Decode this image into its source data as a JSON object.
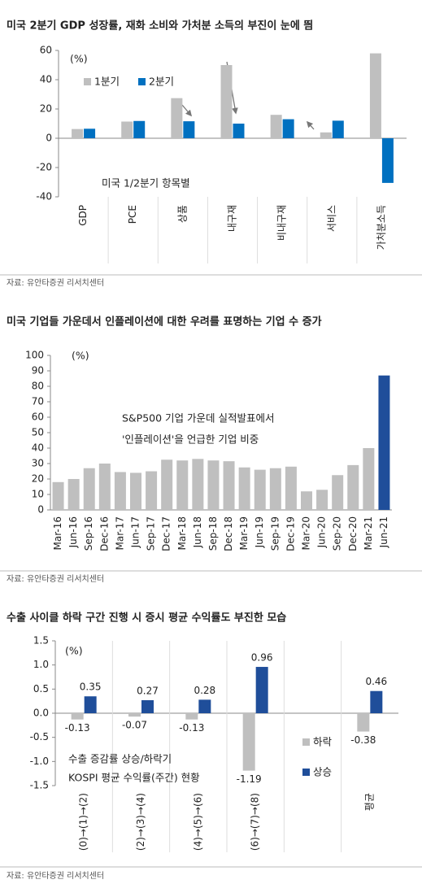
{
  "chart_data": [
    {
      "type": "bar",
      "title": "미국 2분기 GDP 성장률, 재화 소비와 가처분 소득의 부진이 눈에 띔",
      "categories": [
        "GDP",
        "PCE",
        "상품",
        "내구재",
        "비내구재",
        "서비스",
        "가처분소득"
      ],
      "series": [
        {
          "name": "1분기",
          "color": "#bfbfbf",
          "values": [
            6.3,
            11.4,
            27.4,
            50,
            16,
            4,
            58
          ]
        },
        {
          "name": "2분기",
          "color": "#0070c0",
          "values": [
            6.5,
            11.8,
            11.6,
            10,
            13,
            12,
            -30.5
          ]
        }
      ],
      "ylim": [
        -40,
        60
      ],
      "yticks": [
        -40,
        -20,
        0,
        20,
        40,
        60
      ],
      "annotations": [
        "(%)",
        "미국 1/2분기 항목별"
      ],
      "legend": "top-left",
      "source": "자료: 유안타증권 리서치센터"
    },
    {
      "type": "bar",
      "title": "미국 기업들 가운데서 인플레이션에 대한 우려를 표명하는 기업 수 증가",
      "categories": [
        "Mar-16",
        "Jun-16",
        "Sep-16",
        "Dec-16",
        "Mar-17",
        "Jun-17",
        "Sep-17",
        "Dec-17",
        "Mar-18",
        "Jun-18",
        "Sep-18",
        "Dec-18",
        "Mar-19",
        "Jun-19",
        "Sep-19",
        "Dec-19",
        "Mar-20",
        "Jun-20",
        "Sep-20",
        "Dec-20",
        "Mar-21",
        "Jun-21"
      ],
      "values": [
        18,
        20,
        27,
        30,
        24.5,
        24,
        25,
        32.5,
        32,
        33,
        32,
        31.5,
        27.5,
        26,
        27,
        28,
        12,
        13,
        22.5,
        29,
        40,
        87
      ],
      "colors": [
        "#bfbfbf",
        "#bfbfbf",
        "#bfbfbf",
        "#bfbfbf",
        "#bfbfbf",
        "#bfbfbf",
        "#bfbfbf",
        "#bfbfbf",
        "#bfbfbf",
        "#bfbfbf",
        "#bfbfbf",
        "#bfbfbf",
        "#bfbfbf",
        "#bfbfbf",
        "#bfbfbf",
        "#bfbfbf",
        "#bfbfbf",
        "#bfbfbf",
        "#bfbfbf",
        "#bfbfbf",
        "#bfbfbf",
        "#1f4e9a"
      ],
      "ylim": [
        0,
        100
      ],
      "yticks": [
        0,
        10,
        20,
        30,
        40,
        50,
        60,
        70,
        80,
        90,
        100
      ],
      "annotations": [
        "(%)",
        "S&P500 기업 가운데 실적발표에서",
        "'인플레이션'을 언급한 기업 비중"
      ],
      "source": "자료: 유안타증권 리서치센터"
    },
    {
      "type": "bar",
      "title": "수출 사이클 하락 구간 진행 시 증시 평균 수익률도 부진한 모습",
      "categories": [
        "(0)→(1)→(2)",
        "(2)→(3)→(4)",
        "(4)→(5)→(6)",
        "(6)→(7)→(8)",
        null,
        "평균"
      ],
      "series": [
        {
          "name": "하락",
          "color": "#bfbfbf",
          "values": [
            -0.13,
            -0.07,
            -0.13,
            -1.19,
            null,
            -0.38
          ]
        },
        {
          "name": "상승",
          "color": "#1f4e9a",
          "values": [
            0.35,
            0.27,
            0.28,
            0.96,
            null,
            0.46
          ]
        }
      ],
      "ylim": [
        -1.5,
        1.5
      ],
      "yticks": [
        -1.5,
        {
          "value": -1,
          "label": "-1.0"
        },
        -0.5,
        {
          "value": 0,
          "label": "0.0"
        },
        0.5,
        {
          "value": 1,
          "label": "1.0"
        },
        1.5
      ],
      "data_labels": true,
      "annotations": [
        "(%)",
        "수출 증감률 상승/하락기",
        "KOSPI 평균 수익률(주간) 현황"
      ],
      "legend": "bottom-right",
      "source": "자료: 유안타증권 리서치센터"
    }
  ]
}
